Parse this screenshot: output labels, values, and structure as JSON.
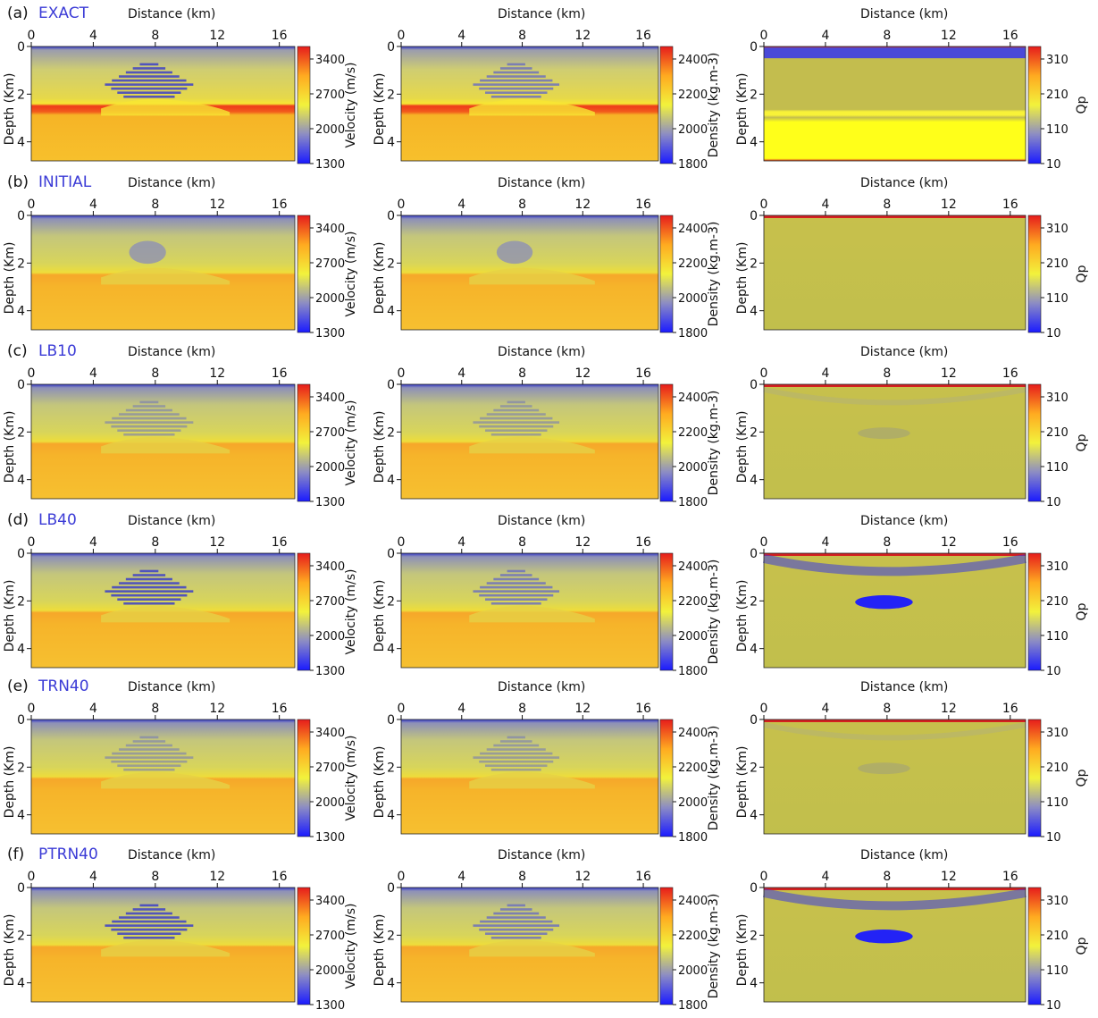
{
  "figure": {
    "rows": [
      {
        "letter": "(a)",
        "name": "EXACT"
      },
      {
        "letter": "(b)",
        "name": "INITIAL"
      },
      {
        "letter": "(c)",
        "name": "LB10"
      },
      {
        "letter": "(d)",
        "name": "LB40"
      },
      {
        "letter": "(e)",
        "name": "TRN40"
      },
      {
        "letter": "(f)",
        "name": "PTRN40"
      }
    ],
    "columns": [
      {
        "param": "velocity",
        "colorbar_label": "Velocity (m/s)",
        "ticks": [
          "3400",
          "2700",
          "2000",
          "1300"
        ]
      },
      {
        "param": "density",
        "colorbar_label": "Density (kg.m-3)",
        "ticks": [
          "2400",
          "2200",
          "2000",
          "1800"
        ]
      },
      {
        "param": "qp",
        "colorbar_label": "Qp",
        "ticks": [
          "310",
          "210",
          "110",
          "10"
        ]
      }
    ],
    "xlabel": "Distance (km)",
    "ylabel": "Depth (Km)",
    "x_ticks": [
      "0",
      "4",
      "8",
      "12",
      "16"
    ],
    "y_ticks": [
      "0",
      "2",
      "4"
    ],
    "colormap": [
      "#1a1aff",
      "#8c8cc4",
      "#f2f23c",
      "#ffaa20",
      "#e61c1c"
    ]
  },
  "chart_data": [
    {
      "type": "heatmap",
      "title": "",
      "xlabel": "Distance (km)",
      "ylabel": "Depth (Km)",
      "xlim": [
        0,
        17
      ],
      "ylim": [
        4.8,
        0
      ],
      "grid": false,
      "panels": [
        {
          "row": "EXACT",
          "parameter": "Velocity (m/s)",
          "colorbar_range": [
            1300,
            3400
          ],
          "colorbar_ticks": [
            3400,
            2700,
            2000,
            1300
          ]
        },
        {
          "row": "EXACT",
          "parameter": "Density (kg.m-3)",
          "colorbar_range": [
            1800,
            2400
          ],
          "colorbar_ticks": [
            2400,
            2200,
            2000,
            1800
          ]
        },
        {
          "row": "EXACT",
          "parameter": "Qp",
          "colorbar_range": [
            10,
            310
          ],
          "colorbar_ticks": [
            310,
            210,
            110,
            10
          ]
        },
        {
          "row": "INITIAL",
          "parameter": "Velocity (m/s)",
          "colorbar_range": [
            1300,
            3400
          ]
        },
        {
          "row": "INITIAL",
          "parameter": "Density (kg.m-3)",
          "colorbar_range": [
            1800,
            2400
          ]
        },
        {
          "row": "INITIAL",
          "parameter": "Qp",
          "colorbar_range": [
            10,
            310
          ]
        },
        {
          "row": "LB10",
          "parameter": "Velocity (m/s)",
          "colorbar_range": [
            1300,
            3400
          ]
        },
        {
          "row": "LB10",
          "parameter": "Density (kg.m-3)",
          "colorbar_range": [
            1800,
            2400
          ]
        },
        {
          "row": "LB10",
          "parameter": "Qp",
          "colorbar_range": [
            10,
            310
          ]
        },
        {
          "row": "LB40",
          "parameter": "Velocity (m/s)",
          "colorbar_range": [
            1300,
            3400
          ]
        },
        {
          "row": "LB40",
          "parameter": "Density (kg.m-3)",
          "colorbar_range": [
            1800,
            2400
          ]
        },
        {
          "row": "LB40",
          "parameter": "Qp",
          "colorbar_range": [
            10,
            310
          ]
        },
        {
          "row": "TRN40",
          "parameter": "Velocity (m/s)",
          "colorbar_range": [
            1300,
            3400
          ]
        },
        {
          "row": "TRN40",
          "parameter": "Density (kg.m-3)",
          "colorbar_range": [
            1800,
            2400
          ]
        },
        {
          "row": "TRN40",
          "parameter": "Qp",
          "colorbar_range": [
            10,
            310
          ]
        },
        {
          "row": "PTRN40",
          "parameter": "Velocity (m/s)",
          "colorbar_range": [
            1300,
            3400
          ]
        },
        {
          "row": "PTRN40",
          "parameter": "Density (kg.m-3)",
          "colorbar_range": [
            1800,
            2400
          ]
        },
        {
          "row": "PTRN40",
          "parameter": "Qp",
          "colorbar_range": [
            10,
            310
          ]
        }
      ]
    }
  ]
}
